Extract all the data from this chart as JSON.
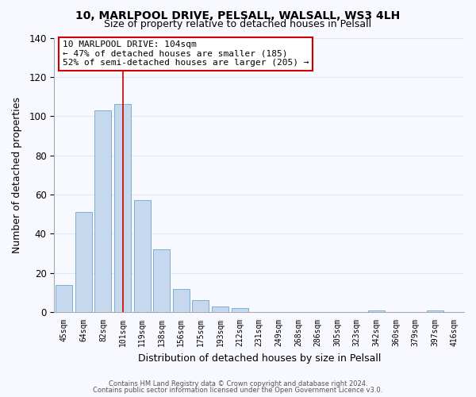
{
  "title1": "10, MARLPOOL DRIVE, PELSALL, WALSALL, WS3 4LH",
  "title2": "Size of property relative to detached houses in Pelsall",
  "xlabel": "Distribution of detached houses by size in Pelsall",
  "ylabel": "Number of detached properties",
  "bar_labels": [
    "45sqm",
    "64sqm",
    "82sqm",
    "101sqm",
    "119sqm",
    "138sqm",
    "156sqm",
    "175sqm",
    "193sqm",
    "212sqm",
    "231sqm",
    "249sqm",
    "268sqm",
    "286sqm",
    "305sqm",
    "323sqm",
    "342sqm",
    "360sqm",
    "379sqm",
    "397sqm",
    "416sqm"
  ],
  "bar_values": [
    14,
    51,
    103,
    106,
    57,
    32,
    12,
    6,
    3,
    2,
    0,
    0,
    0,
    0,
    0,
    0,
    1,
    0,
    0,
    1,
    0
  ],
  "bar_color": "#c5d8ed",
  "bar_edge_color": "#7aafd4",
  "highlight_index": 3,
  "highlight_line_color": "#cc0000",
  "ylim": [
    0,
    140
  ],
  "yticks": [
    0,
    20,
    40,
    60,
    80,
    100,
    120,
    140
  ],
  "annotation_title": "10 MARLPOOL DRIVE: 104sqm",
  "annotation_line1": "← 47% of detached houses are smaller (185)",
  "annotation_line2": "52% of semi-detached houses are larger (205) →",
  "annotation_box_color": "#ffffff",
  "annotation_box_edge": "#cc0000",
  "footer1": "Contains HM Land Registry data © Crown copyright and database right 2024.",
  "footer2": "Contains public sector information licensed under the Open Government Licence v3.0.",
  "bg_color": "#f8f8ff",
  "grid_color": "#dce8f5"
}
